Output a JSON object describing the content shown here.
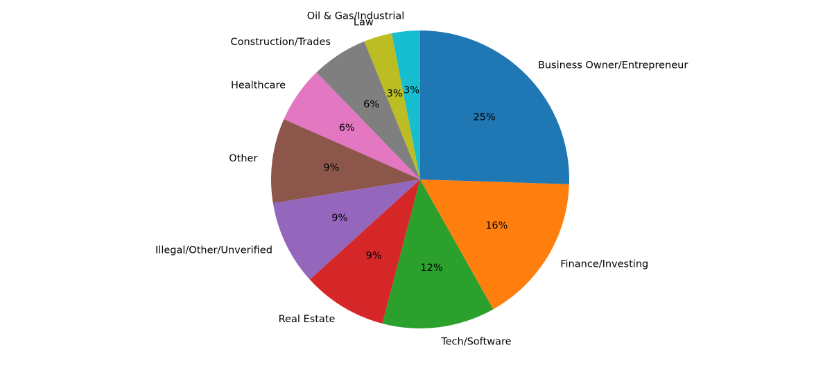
{
  "chart_data": {
    "type": "pie",
    "title": "",
    "start_angle_deg": 90,
    "direction": "counterclockwise",
    "slices": [
      {
        "label": "Oil & Gas/Industrial",
        "value": 3,
        "pct_label": "3%",
        "color": "#17becf"
      },
      {
        "label": "Law",
        "value": 3,
        "pct_label": "3%",
        "color": "#bcbd22"
      },
      {
        "label": "Construction/Trades",
        "value": 6,
        "pct_label": "6%",
        "color": "#7f7f7f"
      },
      {
        "label": "Healthcare",
        "value": 6,
        "pct_label": "6%",
        "color": "#e377c2"
      },
      {
        "label": "Other",
        "value": 9,
        "pct_label": "9%",
        "color": "#8c564b"
      },
      {
        "label": "Illegal/Other/Unverified",
        "value": 9,
        "pct_label": "9%",
        "color": "#9467bd"
      },
      {
        "label": "Real Estate",
        "value": 9,
        "pct_label": "9%",
        "color": "#d62728"
      },
      {
        "label": "Tech/Software",
        "value": 12,
        "pct_label": "12%",
        "color": "#2ca02c"
      },
      {
        "label": "Finance/Investing",
        "value": 16,
        "pct_label": "16%",
        "color": "#ff7f0e"
      },
      {
        "label": "Business Owner/Entrepreneur",
        "value": 25,
        "pct_label": "25%",
        "color": "#1f77b4"
      }
    ]
  }
}
